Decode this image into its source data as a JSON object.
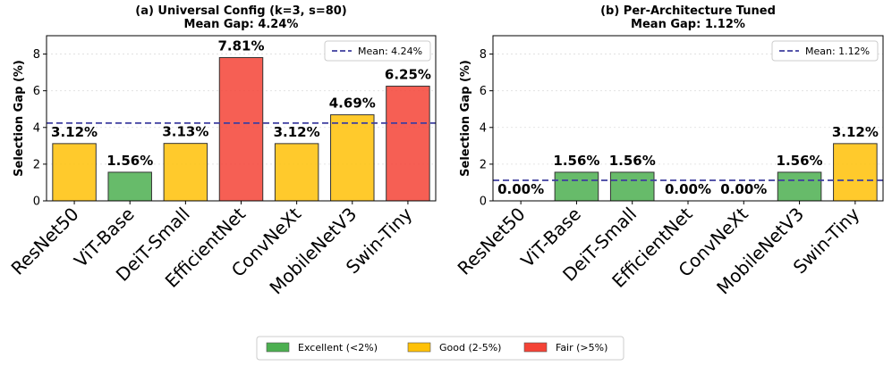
{
  "legend": {
    "items": [
      {
        "label": "Excellent (<2%)",
        "color": "#4caf50"
      },
      {
        "label": "Good (2-5%)",
        "color": "#ffc107"
      },
      {
        "label": "Fair (>5%)",
        "color": "#f44336"
      }
    ]
  },
  "chart_data": [
    {
      "type": "bar",
      "title": "(a) Universal Config (k=3, s=80)",
      "subtitle": "Mean Gap: 4.24%",
      "xlabel": "",
      "ylabel": "Selection Gap (%)",
      "ylim": [
        0,
        9
      ],
      "yticks": [
        0,
        2,
        4,
        6,
        8
      ],
      "categories": [
        "ResNet50",
        "ViT-Base",
        "DeiT-Small",
        "EfficientNet",
        "ConvNeXt",
        "MobileNetV3",
        "Swin-Tiny"
      ],
      "values": [
        3.12,
        1.56,
        3.13,
        7.81,
        3.12,
        4.69,
        6.25
      ],
      "value_labels": [
        "3.12%",
        "1.56%",
        "3.13%",
        "7.81%",
        "3.12%",
        "4.69%",
        "6.25%"
      ],
      "colors": [
        "#ffc107",
        "#4caf50",
        "#ffc107",
        "#f44336",
        "#ffc107",
        "#ffc107",
        "#f44336"
      ],
      "mean": 4.24,
      "mean_label": "Mean: 4.24%",
      "mean_color": "#3f3f9f",
      "legend_position": "top-right",
      "grid": true
    },
    {
      "type": "bar",
      "title": "(b) Per-Architecture Tuned",
      "subtitle": "Mean Gap: 1.12%",
      "xlabel": "",
      "ylabel": "Selection Gap (%)",
      "ylim": [
        0,
        9
      ],
      "yticks": [
        0,
        2,
        4,
        6,
        8
      ],
      "categories": [
        "ResNet50",
        "ViT-Base",
        "DeiT-Small",
        "EfficientNet",
        "ConvNeXt",
        "MobileNetV3",
        "Swin-Tiny"
      ],
      "values": [
        0.0,
        1.56,
        1.56,
        0.0,
        0.0,
        1.56,
        3.12
      ],
      "value_labels": [
        "0.00%",
        "1.56%",
        "1.56%",
        "0.00%",
        "0.00%",
        "1.56%",
        "3.12%"
      ],
      "colors": [
        "#4caf50",
        "#4caf50",
        "#4caf50",
        "#4caf50",
        "#4caf50",
        "#4caf50",
        "#ffc107"
      ],
      "mean": 1.12,
      "mean_label": "Mean: 1.12%",
      "mean_color": "#3f3f9f",
      "legend_position": "top-right",
      "grid": true
    }
  ]
}
